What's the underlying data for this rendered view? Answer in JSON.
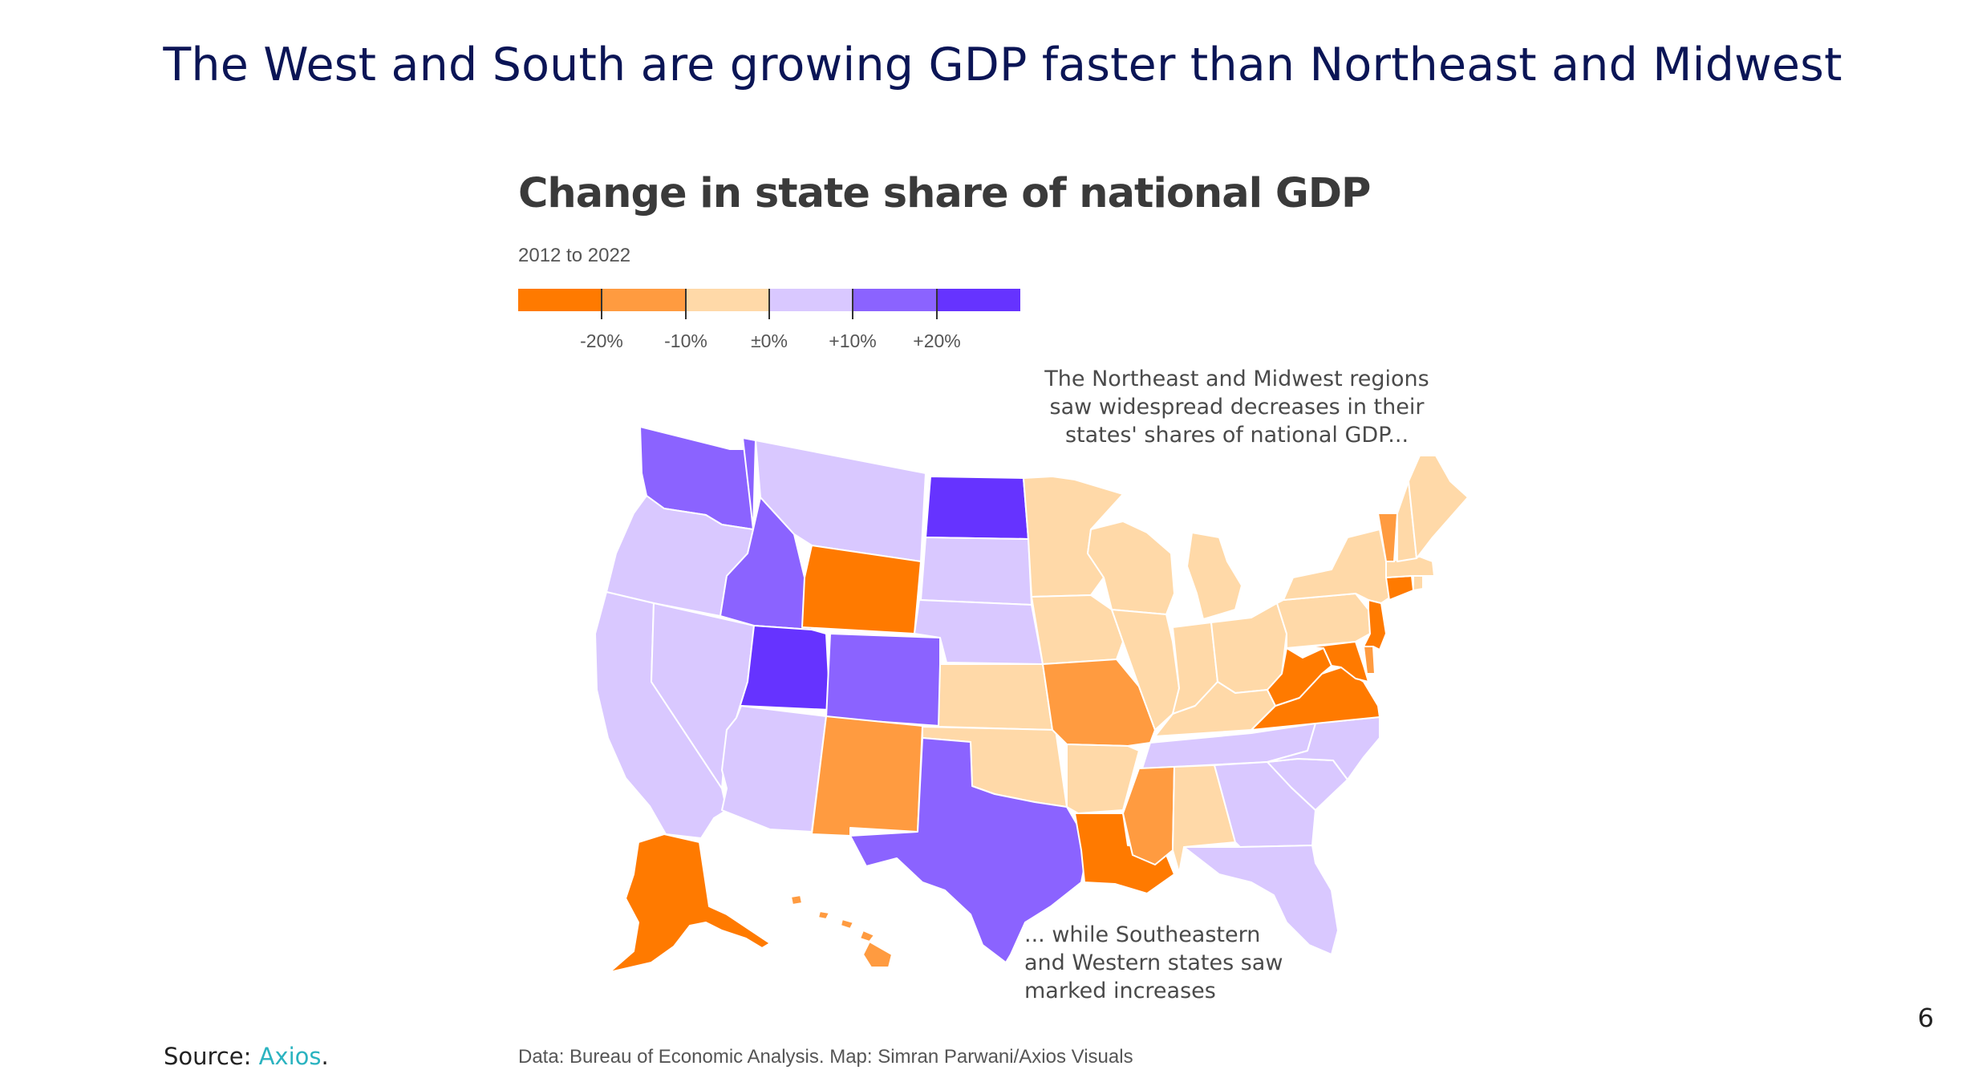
{
  "slide": {
    "title": "The West and South are growing GDP faster than Northeast and Midwest",
    "page_number": "6",
    "source_label": "Source:",
    "source_link": "Axios",
    "source_suffix": "."
  },
  "map": {
    "title": "Change in state share of national GDP",
    "subtitle": "2012 to 2022",
    "credits": "Data: Bureau of Economic Analysis. Map: Simran Parwani/Axios Visuals",
    "legend": {
      "colors": [
        "#ff7a00",
        "#ff9b40",
        "#ffd9a8",
        "#d9c8ff",
        "#8b63ff",
        "#6633ff"
      ],
      "labels": [
        "-20%",
        "-10%",
        "±0%",
        "+10%",
        "+20%"
      ]
    },
    "annotations": {
      "northeast": "The Northeast and Midwest regions\nsaw widespread decreases in their\nstates' shares of national GDP...",
      "southeast": "... while Southeastern\nand Western states saw\nmarked increases"
    },
    "states": [
      {
        "name": "WA",
        "bin": 4
      },
      {
        "name": "OR",
        "bin": 3
      },
      {
        "name": "CA",
        "bin": 3
      },
      {
        "name": "ID",
        "bin": 4
      },
      {
        "name": "NV",
        "bin": 3
      },
      {
        "name": "MT",
        "bin": 3
      },
      {
        "name": "WY",
        "bin": 0
      },
      {
        "name": "UT",
        "bin": 5
      },
      {
        "name": "AZ",
        "bin": 3
      },
      {
        "name": "CO",
        "bin": 4
      },
      {
        "name": "NM",
        "bin": 1
      },
      {
        "name": "ND",
        "bin": 5
      },
      {
        "name": "SD",
        "bin": 3
      },
      {
        "name": "NE",
        "bin": 3
      },
      {
        "name": "KS",
        "bin": 2
      },
      {
        "name": "OK",
        "bin": 2
      },
      {
        "name": "TX",
        "bin": 4
      },
      {
        "name": "MN",
        "bin": 2
      },
      {
        "name": "IA",
        "bin": 2
      },
      {
        "name": "MO",
        "bin": 1
      },
      {
        "name": "AR",
        "bin": 2
      },
      {
        "name": "LA",
        "bin": 0
      },
      {
        "name": "WI",
        "bin": 2
      },
      {
        "name": "IL",
        "bin": 2
      },
      {
        "name": "MI",
        "bin": 2
      },
      {
        "name": "IN",
        "bin": 2
      },
      {
        "name": "OH",
        "bin": 2
      },
      {
        "name": "KY",
        "bin": 2
      },
      {
        "name": "TN",
        "bin": 3
      },
      {
        "name": "MS",
        "bin": 1
      },
      {
        "name": "AL",
        "bin": 2
      },
      {
        "name": "GA",
        "bin": 3
      },
      {
        "name": "FL",
        "bin": 3
      },
      {
        "name": "SC",
        "bin": 3
      },
      {
        "name": "NC",
        "bin": 3
      },
      {
        "name": "VA",
        "bin": 0
      },
      {
        "name": "WV",
        "bin": 0
      },
      {
        "name": "MD",
        "bin": 0
      },
      {
        "name": "DE",
        "bin": 1
      },
      {
        "name": "PA",
        "bin": 2
      },
      {
        "name": "NJ",
        "bin": 0
      },
      {
        "name": "NY",
        "bin": 2
      },
      {
        "name": "CT",
        "bin": 0
      },
      {
        "name": "RI",
        "bin": 2
      },
      {
        "name": "MA",
        "bin": 2
      },
      {
        "name": "VT",
        "bin": 1
      },
      {
        "name": "NH",
        "bin": 2
      },
      {
        "name": "ME",
        "bin": 2
      },
      {
        "name": "AK",
        "bin": 0
      },
      {
        "name": "HI",
        "bin": 1
      }
    ]
  }
}
